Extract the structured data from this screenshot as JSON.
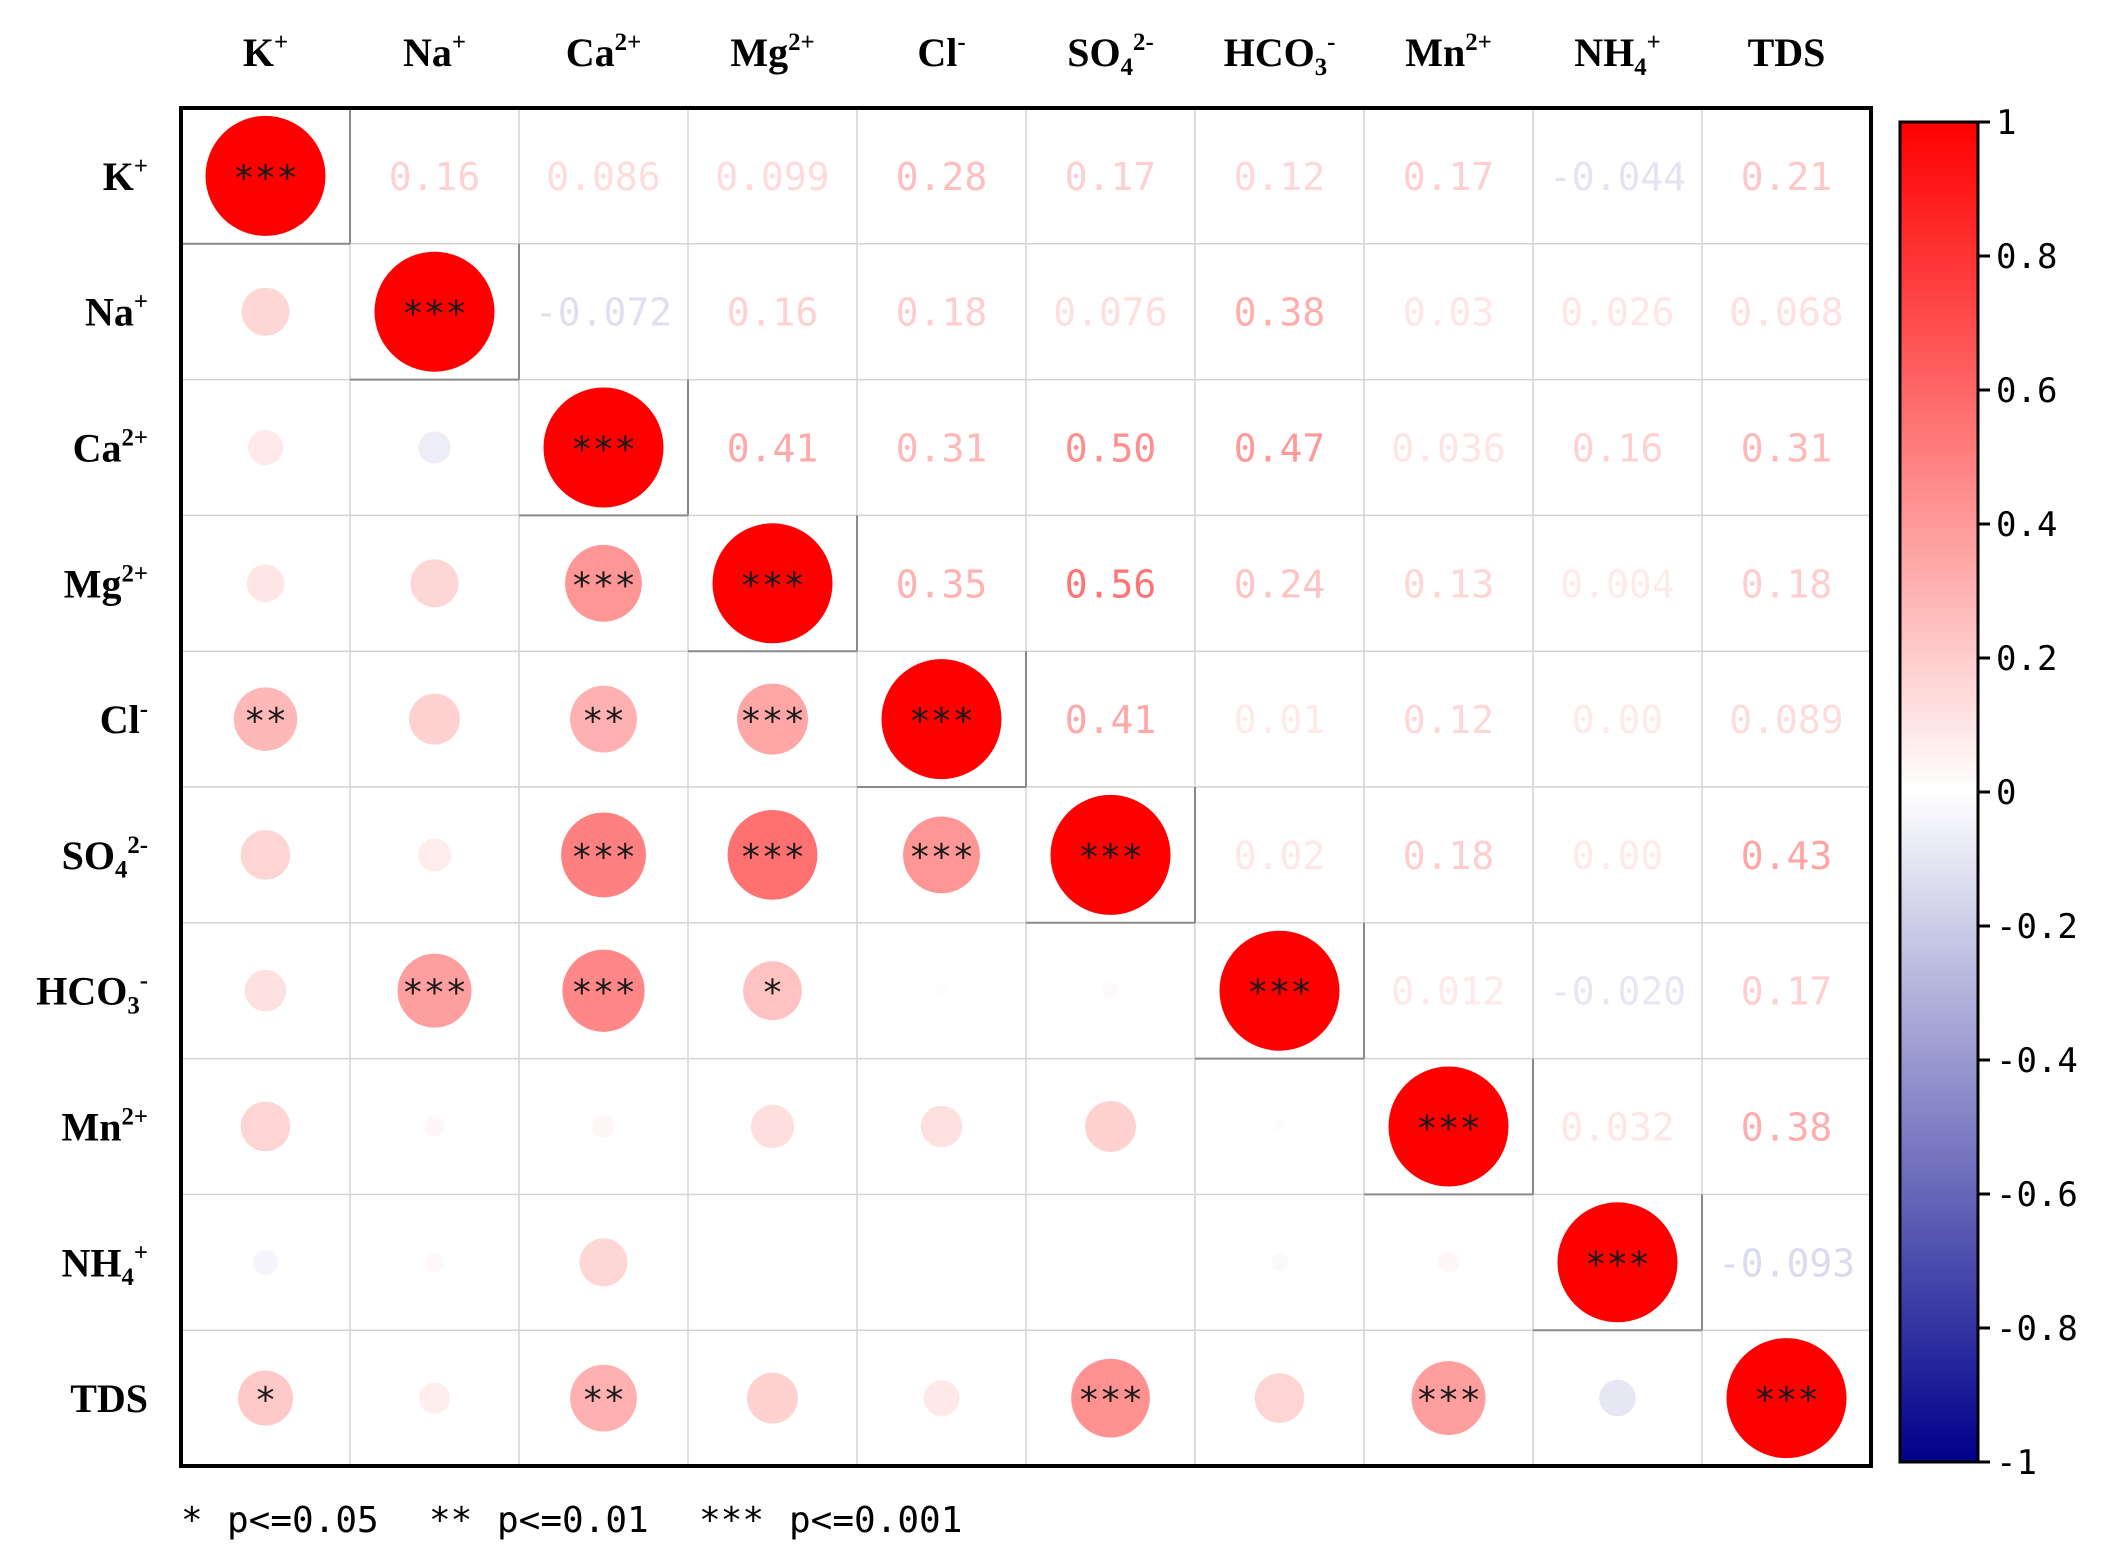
{
  "chart_data": {
    "type": "heatmap",
    "title": "",
    "variables": [
      {
        "base": "K",
        "sup": "+",
        "sub": ""
      },
      {
        "base": "Na",
        "sup": "+",
        "sub": ""
      },
      {
        "base": "Ca",
        "sup": "2+",
        "sub": ""
      },
      {
        "base": "Mg",
        "sup": "2+",
        "sub": ""
      },
      {
        "base": "Cl",
        "sup": "-",
        "sub": ""
      },
      {
        "base": "SO",
        "sup": "2-",
        "sub": "4"
      },
      {
        "base": "HCO",
        "sup": "-",
        "sub": "3"
      },
      {
        "base": "Mn",
        "sup": "2+",
        "sub": ""
      },
      {
        "base": "NH",
        "sup": "+",
        "sub": "4"
      },
      {
        "base": "TDS",
        "sup": "",
        "sub": ""
      }
    ],
    "upper_labels": [
      [
        null,
        "0.16",
        "0.086",
        "0.099",
        "0.28",
        "0.17",
        "0.12",
        "0.17",
        "-0.044",
        "0.21"
      ],
      [
        null,
        null,
        "-0.072",
        "0.16",
        "0.18",
        "0.076",
        "0.38",
        "0.03",
        "0.026",
        "0.068"
      ],
      [
        null,
        null,
        null,
        "0.41",
        "0.31",
        "0.50",
        "0.47",
        "0.036",
        "0.16",
        "0.31"
      ],
      [
        null,
        null,
        null,
        null,
        "0.35",
        "0.56",
        "0.24",
        "0.13",
        "0.004",
        "0.18"
      ],
      [
        null,
        null,
        null,
        null,
        null,
        "0.41",
        "0.01",
        "0.12",
        "0.00",
        "0.089"
      ],
      [
        null,
        null,
        null,
        null,
        null,
        null,
        "0.02",
        "0.18",
        "0.00",
        "0.43"
      ],
      [
        null,
        null,
        null,
        null,
        null,
        null,
        null,
        "0.012",
        "-0.020",
        "0.17"
      ],
      [
        null,
        null,
        null,
        null,
        null,
        null,
        null,
        null,
        "0.032",
        "0.38"
      ],
      [
        null,
        null,
        null,
        null,
        null,
        null,
        null,
        null,
        null,
        "-0.093"
      ],
      [
        null,
        null,
        null,
        null,
        null,
        null,
        null,
        null,
        null,
        null
      ]
    ],
    "matrix": [
      [
        1,
        0.16,
        0.086,
        0.099,
        0.28,
        0.17,
        0.12,
        0.17,
        -0.044,
        0.21
      ],
      [
        0.16,
        1,
        -0.072,
        0.16,
        0.18,
        0.076,
        0.38,
        0.03,
        0.026,
        0.068
      ],
      [
        0.086,
        -0.072,
        1,
        0.41,
        0.31,
        0.5,
        0.47,
        0.036,
        0.16,
        0.31
      ],
      [
        0.099,
        0.16,
        0.41,
        1,
        0.35,
        0.56,
        0.24,
        0.13,
        0.004,
        0.18
      ],
      [
        0.28,
        0.18,
        0.31,
        0.35,
        1,
        0.41,
        0.01,
        0.12,
        0.0,
        0.089
      ],
      [
        0.17,
        0.076,
        0.5,
        0.56,
        0.41,
        1,
        0.02,
        0.18,
        0.0,
        0.43
      ],
      [
        0.12,
        0.38,
        0.47,
        0.24,
        0.01,
        0.02,
        1,
        0.012,
        -0.02,
        0.17
      ],
      [
        0.17,
        0.03,
        0.036,
        0.13,
        0.12,
        0.18,
        0.012,
        1,
        0.032,
        0.38
      ],
      [
        -0.044,
        0.026,
        0.16,
        0.004,
        0.0,
        0.0,
        -0.02,
        0.032,
        1,
        -0.093
      ],
      [
        0.21,
        0.068,
        0.31,
        0.18,
        0.089,
        0.43,
        0.17,
        0.38,
        -0.093,
        1
      ]
    ],
    "significance": [
      [
        "***",
        "",
        "",
        "",
        "",
        "",
        "",
        "",
        "",
        ""
      ],
      [
        "",
        "***",
        "",
        "",
        "",
        "",
        "",
        "",
        "",
        ""
      ],
      [
        "",
        "",
        "***",
        "",
        "",
        "",
        "",
        "",
        "",
        ""
      ],
      [
        "",
        "",
        "***",
        "***",
        "",
        "",
        "",
        "",
        "",
        ""
      ],
      [
        "**",
        "",
        "**",
        "***",
        "***",
        "",
        "",
        "",
        "",
        ""
      ],
      [
        "",
        "",
        "***",
        "***",
        "***",
        "***",
        "",
        "",
        "",
        ""
      ],
      [
        "",
        "***",
        "***",
        "*",
        "",
        "",
        "***",
        "",
        "",
        ""
      ],
      [
        "",
        "",
        "",
        "",
        "",
        "",
        "",
        "***",
        "",
        ""
      ],
      [
        "",
        "",
        "",
        "",
        "",
        "",
        "",
        "",
        "***",
        ""
      ],
      [
        "*",
        "",
        "**",
        "",
        "",
        "***",
        "",
        "***",
        "",
        "***"
      ]
    ],
    "colorbar": {
      "range": [
        -1,
        1
      ],
      "ticks": [
        "1",
        "0.8",
        "0.6",
        "0.4",
        "0.2",
        "0",
        "-0.2",
        "-0.4",
        "-0.6",
        "-0.8",
        "-1"
      ],
      "colors": {
        "low": "#00008b",
        "mid": "#ffffff",
        "high": "#ff0000"
      }
    },
    "legend": [
      {
        "stars": "*",
        "text": "p<=0.05"
      },
      {
        "stars": "**",
        "text": "p<=0.01"
      },
      {
        "stars": "***",
        "text": "p<=0.001"
      }
    ]
  }
}
